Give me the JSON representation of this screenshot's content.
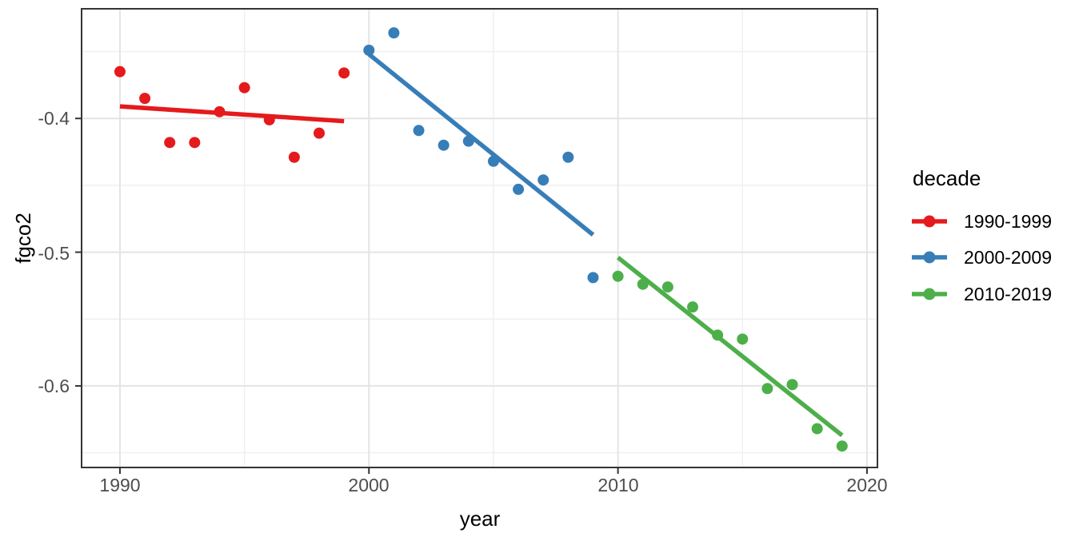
{
  "chart_data": {
    "type": "scatter",
    "title": "",
    "xlabel": "year",
    "ylabel": "fgco2",
    "legend_title": "decade",
    "legend_position": "right",
    "grid": true,
    "xlim": [
      1988.46,
      2020.42
    ],
    "ylim": [
      -0.661,
      -0.318
    ],
    "x_ticks": [
      1990,
      2000,
      2010,
      2020
    ],
    "x_tick_labels": [
      "1990",
      "2000",
      "2010",
      "2020"
    ],
    "y_ticks": [
      -0.4,
      -0.5,
      -0.6
    ],
    "y_tick_labels": [
      "-0.4",
      "-0.5",
      "-0.6"
    ],
    "x_minor_ticks": [
      1995,
      2005,
      2015
    ],
    "y_minor_ticks": [
      -0.35,
      -0.45,
      -0.55,
      -0.65
    ],
    "series": [
      {
        "name": "1990-1999",
        "color": "#E41A1C",
        "x": [
          1990,
          1991,
          1992,
          1993,
          1994,
          1995,
          1996,
          1997,
          1998,
          1999
        ],
        "y": [
          -0.365,
          -0.385,
          -0.418,
          -0.418,
          -0.395,
          -0.377,
          -0.401,
          -0.429,
          -0.411,
          -0.366
        ],
        "trend": {
          "x": [
            1990,
            1999
          ],
          "y": [
            -0.391,
            -0.402
          ]
        }
      },
      {
        "name": "2000-2009",
        "color": "#377EB8",
        "x": [
          2000,
          2001,
          2002,
          2003,
          2004,
          2005,
          2006,
          2007,
          2008,
          2009
        ],
        "y": [
          -0.349,
          -0.336,
          -0.409,
          -0.42,
          -0.417,
          -0.432,
          -0.453,
          -0.446,
          -0.429,
          -0.519
        ],
        "trend": {
          "x": [
            2000,
            2009
          ],
          "y": [
            -0.352,
            -0.487
          ]
        }
      },
      {
        "name": "2010-2019",
        "color": "#4DAF4A",
        "x": [
          2010,
          2011,
          2012,
          2013,
          2014,
          2015,
          2016,
          2017,
          2018,
          2019
        ],
        "y": [
          -0.518,
          -0.524,
          -0.526,
          -0.541,
          -0.562,
          -0.565,
          -0.602,
          -0.599,
          -0.632,
          -0.645
        ],
        "trend": {
          "x": [
            2010,
            2019
          ],
          "y": [
            -0.504,
            -0.637
          ]
        }
      }
    ]
  },
  "legend": {
    "title": "decade",
    "entries": [
      {
        "label": "1990-1999",
        "color": "#E41A1C"
      },
      {
        "label": "2000-2009",
        "color": "#377EB8"
      },
      {
        "label": "2010-2019",
        "color": "#4DAF4A"
      }
    ]
  },
  "colors": {
    "red": "#E41A1C",
    "blue": "#377EB8",
    "green": "#4DAF4A",
    "grid_major": "#E4E4E4",
    "grid_minor": "#EFEFEF",
    "panel_border": "#343434",
    "tick_mark": "#333333",
    "tick_text": "#4D4D4D",
    "background": "#FFFFFF"
  }
}
